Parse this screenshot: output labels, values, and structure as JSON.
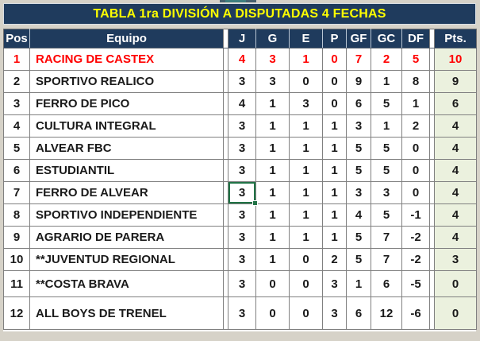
{
  "title": "TABLA 1ra DIVISIÓN A DISPUTADAS 4 FECHAS",
  "columns": [
    "Pos",
    "Equipo",
    "J",
    "G",
    "E",
    "P",
    "GF",
    "GC",
    "DF",
    "Pts."
  ],
  "rows": [
    {
      "pos": "1",
      "team": "RACING DE CASTEX",
      "j": "4",
      "g": "3",
      "e": "1",
      "p": "0",
      "gf": "7",
      "gc": "2",
      "df": "5",
      "pts": "10",
      "highlight": true
    },
    {
      "pos": "2",
      "team": "SPORTIVO REALICO",
      "j": "3",
      "g": "3",
      "e": "0",
      "p": "0",
      "gf": "9",
      "gc": "1",
      "df": "8",
      "pts": "9"
    },
    {
      "pos": "3",
      "team": "FERRO DE PICO",
      "j": "4",
      "g": "1",
      "e": "3",
      "p": "0",
      "gf": "6",
      "gc": "5",
      "df": "1",
      "pts": "6"
    },
    {
      "pos": "4",
      "team": "CULTURA INTEGRAL",
      "j": "3",
      "g": "1",
      "e": "1",
      "p": "1",
      "gf": "3",
      "gc": "1",
      "df": "2",
      "pts": "4"
    },
    {
      "pos": "5",
      "team": "ALVEAR FBC",
      "j": "3",
      "g": "1",
      "e": "1",
      "p": "1",
      "gf": "5",
      "gc": "5",
      "df": "0",
      "pts": "4"
    },
    {
      "pos": "6",
      "team": "ESTUDIANTIL",
      "j": "3",
      "g": "1",
      "e": "1",
      "p": "1",
      "gf": "5",
      "gc": "5",
      "df": "0",
      "pts": "4"
    },
    {
      "pos": "7",
      "team": "FERRO DE ALVEAR",
      "j": "3",
      "g": "1",
      "e": "1",
      "p": "1",
      "gf": "3",
      "gc": "3",
      "df": "0",
      "pts": "4"
    },
    {
      "pos": "8",
      "team": "SPORTIVO INDEPENDIENTE",
      "j": "3",
      "g": "1",
      "e": "1",
      "p": "1",
      "gf": "4",
      "gc": "5",
      "df": "-1",
      "pts": "4"
    },
    {
      "pos": "9",
      "team": "AGRARIO DE PARERA",
      "j": "3",
      "g": "1",
      "e": "1",
      "p": "1",
      "gf": "5",
      "gc": "7",
      "df": "-2",
      "pts": "4"
    },
    {
      "pos": "10",
      "team": "**JUVENTUD REGIONAL",
      "j": "3",
      "g": "1",
      "e": "0",
      "p": "2",
      "gf": "5",
      "gc": "7",
      "df": "-2",
      "pts": "3"
    },
    {
      "pos": "11",
      "team": "**COSTA BRAVA",
      "j": "3",
      "g": "0",
      "e": "0",
      "p": "3",
      "gf": "1",
      "gc": "6",
      "df": "-5",
      "pts": "0"
    },
    {
      "pos": "12",
      "team": "ALL BOYS DE TRENEL",
      "j": "3",
      "g": "0",
      "e": "0",
      "p": "3",
      "gf": "6",
      "gc": "12",
      "df": "-6",
      "pts": "0"
    }
  ],
  "selection": {
    "row": 7,
    "field": "j"
  },
  "colors": {
    "header_bg": "#1F3B5D",
    "title_text": "#FFFF00",
    "leader_text": "#FF0000",
    "pts_column_bg": "#EBF1DE",
    "frame_bg": "#D6D2C8",
    "selection_border": "#217346"
  }
}
